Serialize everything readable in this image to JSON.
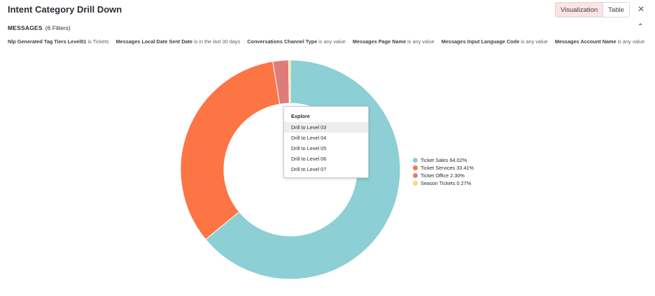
{
  "header": {
    "title": "Intent Category Drill Down",
    "tabs": [
      "Visualization",
      "Table"
    ],
    "active_tab": "Visualization"
  },
  "section": {
    "name": "MESSAGES",
    "count": "(6 Filters)"
  },
  "filters": [
    {
      "name": "Nlp Generated Tag Tiers Level01",
      "condition": "is Tickets"
    },
    {
      "name": "Messages Local Date Sent Date",
      "condition": "is in the last 30 days"
    },
    {
      "name": "Conversations Channel Type",
      "condition": "is any value"
    },
    {
      "name": "Messages Page Name",
      "condition": "is any value"
    },
    {
      "name": "Messages Input Language Code",
      "condition": "is any value"
    },
    {
      "name": "Messages Account Name",
      "condition": "is any value"
    }
  ],
  "context_menu": {
    "heading": "Explore",
    "items": [
      "Drill to Level 03",
      "Drill to Level 04",
      "Drill to Level 05",
      "Drill to Level 06",
      "Drill to Level 07"
    ],
    "highlighted": "Drill to Level 03"
  },
  "icons": {
    "close": "close-icon",
    "collapse": "chevron-up-icon"
  },
  "chart_data": {
    "type": "pie",
    "variant": "donut",
    "categories": [
      "Ticket Sales",
      "Ticket Services",
      "Ticket Office",
      "Season Tickets"
    ],
    "values": [
      64.02,
      33.41,
      2.3,
      0.27
    ],
    "colors": [
      "#8ccfd4",
      "#fd7445",
      "#e07c77",
      "#f9d77e"
    ],
    "legend_labels": [
      "Ticket Sales 64.02%",
      "Ticket Services 33.41%",
      "Ticket Office 2.30%",
      "Season Tickets 0.27%"
    ],
    "legend_position": "right"
  }
}
